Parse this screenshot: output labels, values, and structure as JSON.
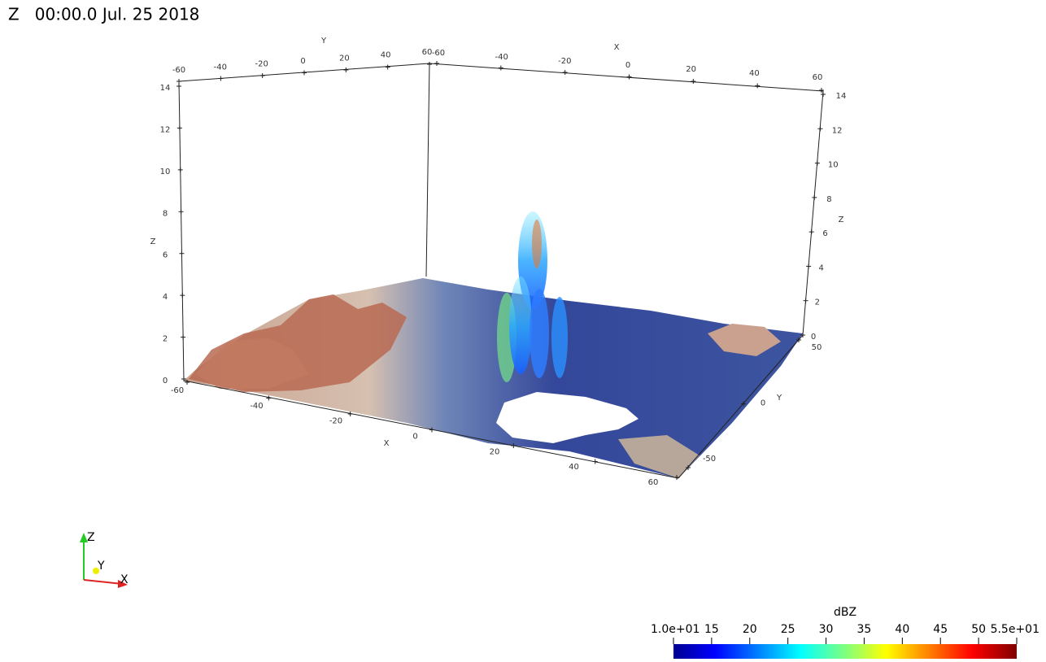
{
  "title": "Z   00:00.0 Jul. 25 2018",
  "axes": {
    "top_y": {
      "title": "Y",
      "ticks": [
        "-60",
        "-40",
        "-20",
        "0",
        "20",
        "40",
        "60"
      ]
    },
    "top_x": {
      "title": "X",
      "ticks": [
        "-60",
        "-40",
        "-20",
        "0",
        "20",
        "40",
        "60"
      ]
    },
    "left_z": {
      "title": "Z",
      "ticks": [
        "0",
        "2",
        "4",
        "6",
        "8",
        "10",
        "12",
        "14"
      ]
    },
    "right_z": {
      "title": "Z",
      "ticks": [
        "0",
        "2",
        "4",
        "6",
        "8",
        "10",
        "12",
        "14"
      ]
    },
    "bottom_x": {
      "title": "X",
      "ticks": [
        "-60",
        "-40",
        "-20",
        "0",
        "20",
        "40",
        "60"
      ]
    },
    "right_y": {
      "title": "Y",
      "ticks": [
        "50",
        "0",
        "-50"
      ]
    }
  },
  "triad": {
    "z": "Z",
    "y": "Y",
    "x": "X"
  },
  "colorbar": {
    "title": "dBZ",
    "range": [
      10,
      55
    ],
    "ticks": [
      {
        "value": 10,
        "label": "1.0e+01"
      },
      15,
      20,
      25,
      30,
      35,
      40,
      45,
      50,
      {
        "value": 55,
        "label": "5.5e+01"
      }
    ]
  }
}
